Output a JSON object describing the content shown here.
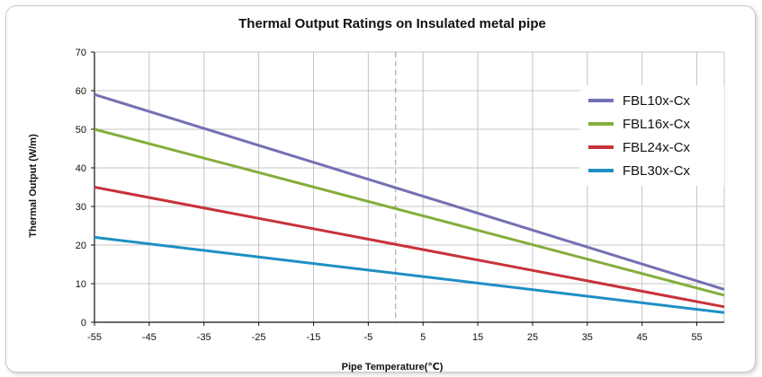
{
  "chart_data": {
    "type": "line",
    "title": "Thermal Output Ratings on Insulated metal pipe",
    "xlabel": "Pipe Temperature(℃)",
    "ylabel": "Thermal Output (W/m)",
    "xlim": [
      -55,
      60
    ],
    "ylim": [
      0,
      70
    ],
    "x_ticks": [
      "-55",
      "-45",
      "-35",
      "-25",
      "-15",
      "-5",
      "5",
      "15",
      "25",
      "35",
      "45",
      "55"
    ],
    "y_ticks": [
      "0",
      "10",
      "20",
      "30",
      "40",
      "50",
      "60",
      "70"
    ],
    "grid": true,
    "reference_line_x": 0,
    "legend_position": "right",
    "series": [
      {
        "name": "FBL10x-Cx",
        "color": "#7470b4",
        "x": [
          -55,
          60
        ],
        "y": [
          59,
          8.5
        ]
      },
      {
        "name": "FBL16x-Cx",
        "color": "#85ad3c",
        "x": [
          -55,
          60
        ],
        "y": [
          50,
          7
        ]
      },
      {
        "name": "FBL24x-Cx",
        "color": "#c8323a",
        "x": [
          -55,
          60
        ],
        "y": [
          35,
          4
        ]
      },
      {
        "name": "FBL30x-Cx",
        "color": "#1f8fc4",
        "x": [
          -55,
          60
        ],
        "y": [
          22,
          2.5
        ]
      }
    ]
  }
}
